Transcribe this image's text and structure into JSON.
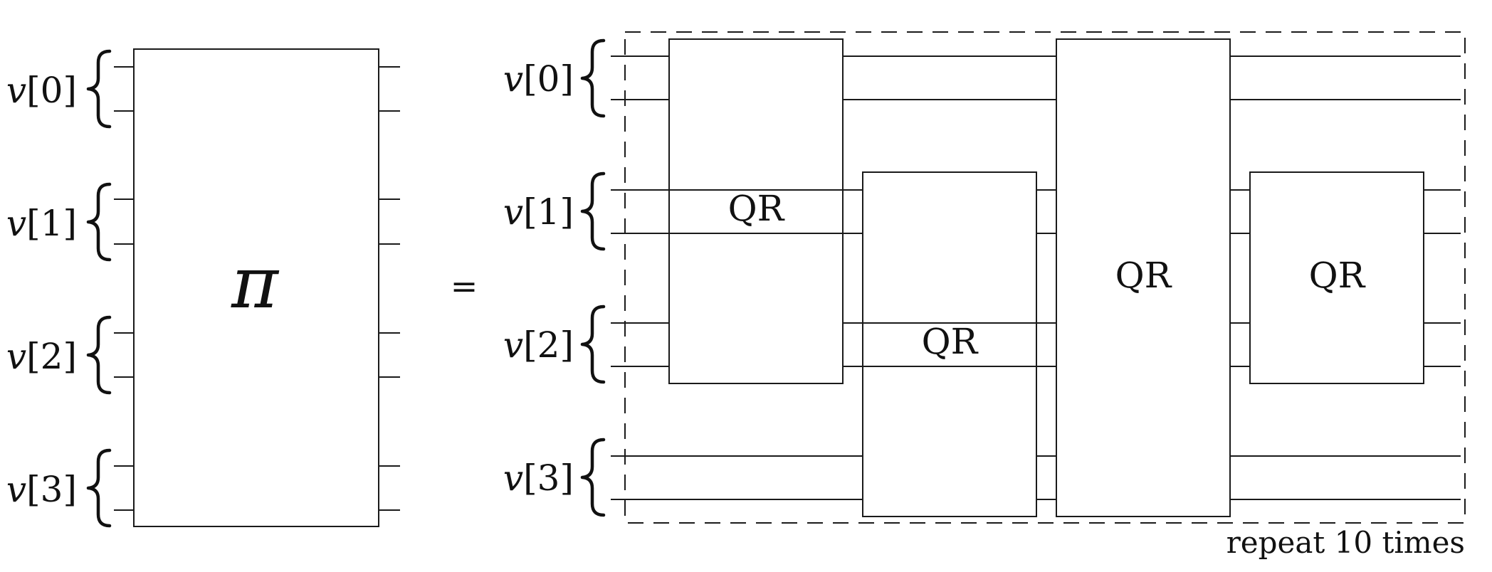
{
  "registers_left": [
    {
      "name": "v",
      "index": "[0]"
    },
    {
      "name": "v",
      "index": "[1]"
    },
    {
      "name": "v",
      "index": "[2]"
    },
    {
      "name": "v",
      "index": "[3]"
    }
  ],
  "registers_right": [
    {
      "name": "v",
      "index": "[0]"
    },
    {
      "name": "v",
      "index": "[1]"
    },
    {
      "name": "v",
      "index": "[2]"
    },
    {
      "name": "v",
      "index": "[3]"
    }
  ],
  "pi_symbol": "π",
  "equals_sign": "=",
  "gates": [
    {
      "label": "QR"
    },
    {
      "label": "QR"
    },
    {
      "label": "QR"
    },
    {
      "label": "QR"
    }
  ],
  "repeat_note": "repeat 10 times"
}
